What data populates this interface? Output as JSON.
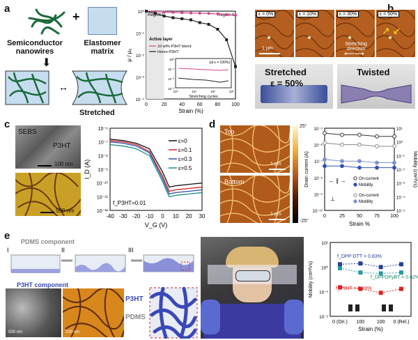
{
  "panels": {
    "a": {
      "label": "a",
      "semiconductor": "Semiconductor nanowires",
      "elastomer": "Elastomer matrix",
      "stretched": "Stretched",
      "plus": "+"
    },
    "b": {
      "label": "b",
      "afm_tags": [
        "ε = 0%",
        "ε = 10%",
        "ε = 30%",
        "ε = 50%"
      ],
      "scale": "1 μm",
      "direction": "Stretching direction",
      "stretched_title": "Stretched",
      "stretched_eps": "ε = 50%",
      "twisted_title": "Twisted"
    },
    "c": {
      "label": "c",
      "tem_label1": "SEBS",
      "tem_label2": "P3HT",
      "tem_scale": "100 nm",
      "afm_scale": "500 nm"
    },
    "d": {
      "label": "d",
      "top": "Top",
      "bottom": "Bottom",
      "scale": "1 μm",
      "colorbar_top": "25°",
      "colorbar_bottom": "-25°"
    },
    "e": {
      "label": "e",
      "pdms_component": "PDMS component",
      "p3ht_component": "P3HT component",
      "steps": [
        "I",
        "II",
        "III"
      ],
      "p3ht": "P3HT",
      "pdms": "PDMS",
      "sem_scale": "500 nm",
      "afm_scale": "200 nm"
    }
  },
  "chart_data": [
    {
      "id": "a-main",
      "type": "line",
      "xlabel": "Strain (%)",
      "ylabel": "μ / μ₀",
      "xlim": [
        0,
        100
      ],
      "xticks": [
        "0",
        "20",
        "40",
        "60",
        "80",
        "100"
      ],
      "yticks": [
        "10⁰",
        "10⁻¹",
        "10⁻²",
        "10⁻³",
        "10⁻⁴"
      ],
      "ylog": [
        -4,
        0
      ],
      "region_labels": [
        "Region I",
        "Region II"
      ],
      "legend_title": "Active layer",
      "series": [
        {
          "name": "10 wt% P3HT blend",
          "color": "#d6448e",
          "x": [
            0,
            10,
            20,
            30,
            40,
            50,
            60,
            70,
            80,
            90,
            100
          ],
          "y": [
            1.0,
            0.95,
            0.9,
            0.88,
            0.85,
            0.82,
            0.8,
            0.78,
            0.75,
            0.7,
            0.65
          ]
        },
        {
          "name": "Homo-P3HT",
          "color": "#222222",
          "x": [
            0,
            10,
            20,
            30,
            40,
            50,
            60,
            70,
            80,
            90,
            100
          ],
          "y": [
            1.0,
            0.8,
            0.6,
            0.5,
            0.45,
            0.4,
            0.3,
            0.25,
            0.15,
            0.05,
            0.003
          ]
        }
      ],
      "inset": {
        "title": "(at ε = 100%)",
        "xlabel": "Stretching cycles",
        "ylabel": "μ / μ₀",
        "xticks": [
          "10⁰",
          "10¹",
          "10²",
          "10³"
        ],
        "yticks": [
          "10⁰",
          "10⁻¹",
          "10⁻²",
          "10⁻³"
        ]
      }
    },
    {
      "id": "c-transfer",
      "type": "line",
      "xlabel": "V_G (V)",
      "ylabel": "I_D (A)",
      "xlim": [
        -40,
        30
      ],
      "xticks": [
        "-40",
        "-30",
        "-20",
        "-10",
        "0",
        "10",
        "20",
        "30"
      ],
      "yticks": [
        "10⁻⁶",
        "10⁻⁷",
        "10⁻⁸",
        "10⁻⁹",
        "10⁻¹⁰",
        "10⁻¹¹",
        "10⁻¹²"
      ],
      "ylog": [
        -12,
        -6
      ],
      "annotation": "f_P3HT=0.01",
      "series": [
        {
          "name": "ε=0",
          "color": "#111111",
          "x": [
            -40,
            -30,
            -20,
            -10,
            0,
            5,
            10,
            20,
            30
          ],
          "y": [
            -6.8,
            -6.9,
            -7.1,
            -7.5,
            -9.2,
            -10.3,
            -10.2,
            -10.1,
            -10.0
          ]
        },
        {
          "name": "ε=0.1",
          "color": "#d62020",
          "x": [
            -40,
            -30,
            -20,
            -10,
            0,
            5,
            10,
            20,
            30
          ],
          "y": [
            -6.9,
            -7.0,
            -7.2,
            -7.7,
            -9.5,
            -10.6,
            -10.5,
            -10.4,
            -10.3
          ]
        },
        {
          "name": "ε=0.3",
          "color": "#2a4fb0",
          "x": [
            -40,
            -30,
            -20,
            -10,
            0,
            5,
            10,
            20,
            30
          ],
          "y": [
            -7.0,
            -7.1,
            -7.3,
            -7.8,
            -9.7,
            -10.8,
            -10.7,
            -10.6,
            -10.5
          ]
        },
        {
          "name": "ε=0.5",
          "color": "#1a8a8a",
          "x": [
            -40,
            -30,
            -20,
            -10,
            0,
            5,
            10,
            20,
            30
          ],
          "y": [
            -7.2,
            -7.3,
            -7.5,
            -8.0,
            -9.9,
            -11.0,
            -10.9,
            -10.8,
            -10.7
          ]
        }
      ]
    },
    {
      "id": "d-current",
      "type": "scatter",
      "xlabel": "Strain %",
      "ylabel": "Drain current (A)",
      "ylabel_right": "Mobility (cm²/Vs)",
      "xlim": [
        0,
        100
      ],
      "xticks": [
        "0",
        "25",
        "50",
        "75",
        "100"
      ],
      "yticks": [
        "10⁻⁵",
        "10⁻⁶",
        "10⁻⁷",
        "10⁻⁸",
        "10⁻⁹",
        "10⁻¹⁰"
      ],
      "yticks_right": [
        "10¹",
        "10⁰",
        "10⁻¹",
        "10⁻²",
        "10⁻³",
        "10⁻⁴",
        "10⁻⁵"
      ],
      "legend": [
        "On-current",
        "Mobility",
        "On-current",
        "Mobility"
      ],
      "markers": [
        "∥",
        "⊥"
      ],
      "series": [
        {
          "name": "On-current ∥",
          "color": "#333333",
          "x": [
            0,
            25,
            50,
            75,
            100
          ],
          "y": [
            -5.3,
            -5.4,
            -5.4,
            -5.5,
            -5.5
          ]
        },
        {
          "name": "Mobility ∥",
          "color": "#3050b0",
          "x": [
            0,
            25,
            50,
            75,
            100
          ],
          "y": [
            -7.3,
            -7.3,
            -7.4,
            -7.4,
            -7.4
          ]
        },
        {
          "name": "On-current ⊥",
          "color": "#888888",
          "x": [
            0,
            25,
            50,
            75,
            100
          ],
          "y": [
            -5.9,
            -6.0,
            -6.0,
            -6.1,
            -6.1
          ]
        },
        {
          "name": "Mobility ⊥",
          "color": "#8090d0",
          "x": [
            0,
            25,
            50,
            75,
            100
          ],
          "y": [
            -6.9,
            -7.0,
            -7.0,
            -7.1,
            -7.1
          ]
        }
      ]
    },
    {
      "id": "e-mobility",
      "type": "scatter",
      "xlabel": "Strain (%)",
      "ylabel": "Mobility (cm²/Vs)",
      "categories": [
        "0 (Ori.)",
        "100",
        "100",
        "0 (Rel.)"
      ],
      "yticks": [
        "10¹",
        "10⁰",
        "10⁻¹",
        "10⁻²"
      ],
      "ylog": [
        -2,
        1
      ],
      "labels": [
        {
          "text": "f_DPP-DTT = 0.83%",
          "color": "#2a3f9a"
        },
        {
          "text": "f_DPPDPyBT = 0.62%",
          "color": "#1a8a6a"
        },
        {
          "text": "f_P3HT = 0.49%",
          "color": "#d62020"
        }
      ],
      "series": [
        {
          "name": "DPP-DTT",
          "color": "#2a3f9a",
          "y": [
            1.3,
            1.4,
            1.0,
            1.3
          ]
        },
        {
          "name": "DPPDPyBT",
          "color": "#2a9a9a",
          "y": [
            0.9,
            0.6,
            0.55,
            0.6
          ]
        },
        {
          "name": "P3HT",
          "color": "#e02020",
          "y": [
            0.15,
            0.13,
            0.09,
            0.13
          ]
        }
      ]
    }
  ]
}
